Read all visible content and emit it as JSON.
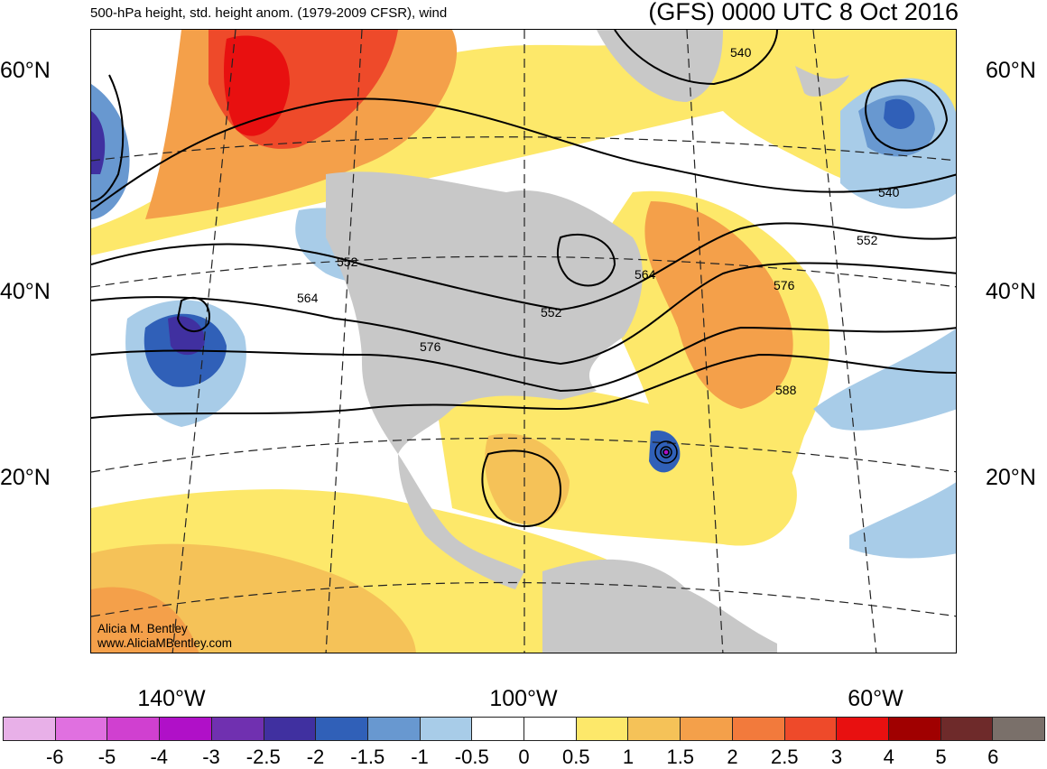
{
  "header": {
    "left_title": "500-hPa height, std. height anom. (1979-2009 CFSR), wind",
    "right_title": "(GFS) 0000 UTC 8 Oct 2016"
  },
  "credit": {
    "author": "Alicia M. Bentley",
    "website": "www.AliciaMBentley.com"
  },
  "lat_labels": [
    "60°N",
    "40°N",
    "20°N"
  ],
  "lon_labels": [
    "140°W",
    "100°W",
    "60°W"
  ],
  "contour_labels": [
    "540",
    "540",
    "552",
    "552",
    "552",
    "564",
    "564",
    "576",
    "576",
    "588"
  ],
  "colorbar": {
    "labels": [
      "-6",
      "-5",
      "-4",
      "-3",
      "-2.5",
      "-2",
      "-1.5",
      "-1",
      "-0.5",
      "0",
      "0.5",
      "1",
      "1.5",
      "2",
      "2.5",
      "3",
      "4",
      "5",
      "6"
    ],
    "colors": [
      "#e8b0e8",
      "#e070e0",
      "#d040d0",
      "#b010c8",
      "#7030b0",
      "#4030a0",
      "#3060b8",
      "#6898d0",
      "#a8cce8",
      "#ffffff",
      "#ffffff",
      "#fde86a",
      "#f5c258",
      "#f4a04a",
      "#f27a3c",
      "#ee4a2a",
      "#e81010",
      "#a00000",
      "#6e2a2a",
      "#7a706a"
    ]
  },
  "legend_colors": {
    "land": "#c8c8c8",
    "ocean": "#ffffff",
    "contour": "#000000"
  }
}
